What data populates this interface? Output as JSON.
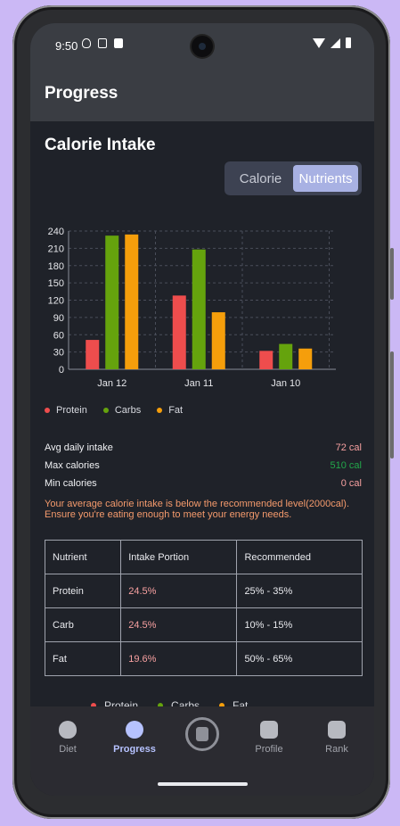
{
  "status": {
    "time": "9:50"
  },
  "appbar": {
    "title": "Progress"
  },
  "section": {
    "title": "Calorie Intake"
  },
  "toggle": {
    "calorie": "Calorie",
    "nutrients": "Nutrients",
    "selected": "Nutrients"
  },
  "colors": {
    "protein": "#ee4d4d",
    "carbs": "#65a30d",
    "fat": "#f59e0b",
    "max_value": "#22a84a",
    "warning": "#f49a6c",
    "accent": "#a8b1e3"
  },
  "chart_data": {
    "type": "bar",
    "categories": [
      "Jan 12",
      "Jan 11",
      "Jan 10"
    ],
    "series": [
      {
        "name": "Protein",
        "values": [
          51,
          128,
          32
        ]
      },
      {
        "name": "Carbs",
        "values": [
          232,
          208,
          44
        ]
      },
      {
        "name": "Fat",
        "values": [
          234,
          99,
          36
        ]
      }
    ],
    "yticks": [
      "240",
      "210",
      "180",
      "150",
      "120",
      "90",
      "60",
      "30",
      "0"
    ],
    "ylim": [
      0,
      240
    ],
    "grid": true,
    "legend": "bottom-left"
  },
  "legend": {
    "protein": "Protein",
    "carbs": "Carbs",
    "fat": "Fat"
  },
  "stats": {
    "avg_label": "Avg daily intake",
    "avg_value": "72 cal",
    "max_label": "Max calories",
    "max_value": "510 cal",
    "min_label": "Min calories",
    "min_value": "0 cal"
  },
  "warning": "Your average calorie intake is below the recommended level(2000cal). Ensure you're eating enough to meet your energy needs.",
  "table": {
    "headers": [
      "Nutrient",
      "Intake Portion",
      "Recommended"
    ],
    "rows": [
      [
        "Protein",
        "24.5%",
        "25% - 35%"
      ],
      [
        "Carb",
        "24.5%",
        "10% - 15%"
      ],
      [
        "Fat",
        "19.6%",
        "50% - 65%"
      ]
    ]
  },
  "peek_legend": {
    "protein": "Protein",
    "carbs": "Carbs",
    "fat": "Fat"
  },
  "nav": {
    "diet": "Diet",
    "progress": "Progress",
    "profile": "Profile",
    "rank": "Rank"
  }
}
